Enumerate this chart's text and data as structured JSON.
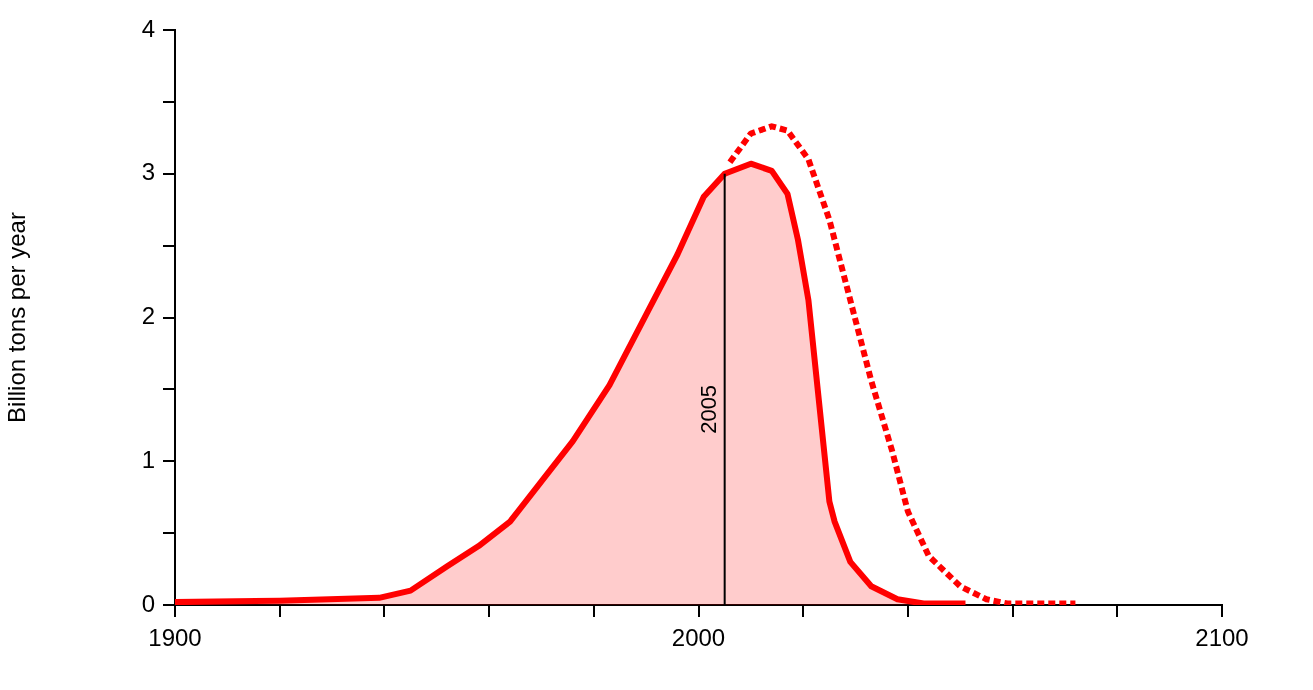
{
  "chart_data": {
    "type": "line",
    "ylabel": "Billion tons per year",
    "xlim": [
      1900,
      2100
    ],
    "xticks": [
      1900,
      {
        "value": 1920,
        "label": null
      },
      {
        "value": 1940,
        "label": null
      },
      {
        "value": 1960,
        "label": null
      },
      {
        "value": 1980,
        "label": null
      },
      2000,
      {
        "value": 2020,
        "label": null
      },
      {
        "value": 2040,
        "label": null
      },
      {
        "value": 2060,
        "label": null
      },
      {
        "value": 2080,
        "label": null
      },
      2100
    ],
    "ylim": [
      0,
      4
    ],
    "yticks": [
      0,
      {
        "value": 0.5,
        "label": null
      },
      1,
      {
        "value": 1.5,
        "label": null
      },
      2,
      {
        "value": 2.5,
        "label": null
      },
      3,
      {
        "value": 3.5,
        "label": null
      },
      4
    ],
    "grid": false,
    "legend": false,
    "marker": "none",
    "series": [
      {
        "type": "area",
        "color": "#ff0000",
        "line_style": "solid",
        "x": [
          1900,
          1920,
          1939,
          1945,
          1952,
          1958,
          1964,
          1970,
          1976,
          1983,
          1990,
          1996,
          2001,
          2005,
          2010,
          2014,
          2017,
          2019,
          2021,
          2023,
          2025,
          2026,
          2029,
          2033,
          2038,
          2043,
          2051
        ],
        "values": [
          0.02,
          0.03,
          0.05,
          0.1,
          0.27,
          0.41,
          0.58,
          0.86,
          1.14,
          1.53,
          2.02,
          2.44,
          2.84,
          3.0,
          3.07,
          3.02,
          2.86,
          2.54,
          2.12,
          1.42,
          0.72,
          0.58,
          0.3,
          0.13,
          0.04,
          0.01,
          0.01
        ]
      },
      {
        "type": "line",
        "color": "#ff0000",
        "line_style": "dashed",
        "x": [
          2006,
          2010,
          2014,
          2017,
          2021,
          2025,
          2029,
          2033,
          2037,
          2040,
          2044,
          2050,
          2055,
          2059,
          2072
        ],
        "values": [
          3.08,
          3.28,
          3.33,
          3.3,
          3.1,
          2.68,
          2.12,
          1.56,
          1.07,
          0.65,
          0.34,
          0.13,
          0.04,
          0.01,
          0.01
        ]
      }
    ],
    "ref_lines": [
      {
        "axis": "x",
        "value": 2005,
        "label": "2005",
        "color": "#000000"
      }
    ]
  }
}
